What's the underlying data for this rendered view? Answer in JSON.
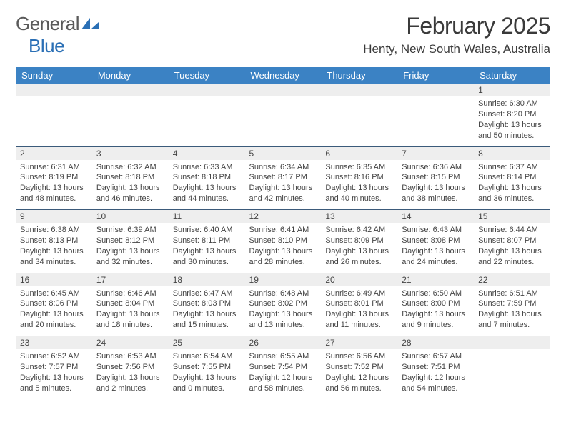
{
  "logo": {
    "text1": "General",
    "text2": "Blue"
  },
  "title": "February 2025",
  "location": "Henty, New South Wales, Australia",
  "colors": {
    "header_bg": "#3b82c4",
    "header_text": "#ffffff",
    "daynum_bg": "#eeeeee",
    "cell_border": "#3b5a7a",
    "body_text": "#444444",
    "logo_gray": "#5a5a5a",
    "logo_blue": "#2a6fb5"
  },
  "typography": {
    "title_fontsize": 32,
    "location_fontsize": 17,
    "header_fontsize": 13,
    "daynum_fontsize": 12,
    "data_fontsize": 11
  },
  "weekdays": [
    "Sunday",
    "Monday",
    "Tuesday",
    "Wednesday",
    "Thursday",
    "Friday",
    "Saturday"
  ],
  "weeks": [
    [
      null,
      null,
      null,
      null,
      null,
      null,
      {
        "n": "1",
        "sr": "Sunrise: 6:30 AM",
        "ss": "Sunset: 8:20 PM",
        "dl1": "Daylight: 13 hours",
        "dl2": "and 50 minutes."
      }
    ],
    [
      {
        "n": "2",
        "sr": "Sunrise: 6:31 AM",
        "ss": "Sunset: 8:19 PM",
        "dl1": "Daylight: 13 hours",
        "dl2": "and 48 minutes."
      },
      {
        "n": "3",
        "sr": "Sunrise: 6:32 AM",
        "ss": "Sunset: 8:18 PM",
        "dl1": "Daylight: 13 hours",
        "dl2": "and 46 minutes."
      },
      {
        "n": "4",
        "sr": "Sunrise: 6:33 AM",
        "ss": "Sunset: 8:18 PM",
        "dl1": "Daylight: 13 hours",
        "dl2": "and 44 minutes."
      },
      {
        "n": "5",
        "sr": "Sunrise: 6:34 AM",
        "ss": "Sunset: 8:17 PM",
        "dl1": "Daylight: 13 hours",
        "dl2": "and 42 minutes."
      },
      {
        "n": "6",
        "sr": "Sunrise: 6:35 AM",
        "ss": "Sunset: 8:16 PM",
        "dl1": "Daylight: 13 hours",
        "dl2": "and 40 minutes."
      },
      {
        "n": "7",
        "sr": "Sunrise: 6:36 AM",
        "ss": "Sunset: 8:15 PM",
        "dl1": "Daylight: 13 hours",
        "dl2": "and 38 minutes."
      },
      {
        "n": "8",
        "sr": "Sunrise: 6:37 AM",
        "ss": "Sunset: 8:14 PM",
        "dl1": "Daylight: 13 hours",
        "dl2": "and 36 minutes."
      }
    ],
    [
      {
        "n": "9",
        "sr": "Sunrise: 6:38 AM",
        "ss": "Sunset: 8:13 PM",
        "dl1": "Daylight: 13 hours",
        "dl2": "and 34 minutes."
      },
      {
        "n": "10",
        "sr": "Sunrise: 6:39 AM",
        "ss": "Sunset: 8:12 PM",
        "dl1": "Daylight: 13 hours",
        "dl2": "and 32 minutes."
      },
      {
        "n": "11",
        "sr": "Sunrise: 6:40 AM",
        "ss": "Sunset: 8:11 PM",
        "dl1": "Daylight: 13 hours",
        "dl2": "and 30 minutes."
      },
      {
        "n": "12",
        "sr": "Sunrise: 6:41 AM",
        "ss": "Sunset: 8:10 PM",
        "dl1": "Daylight: 13 hours",
        "dl2": "and 28 minutes."
      },
      {
        "n": "13",
        "sr": "Sunrise: 6:42 AM",
        "ss": "Sunset: 8:09 PM",
        "dl1": "Daylight: 13 hours",
        "dl2": "and 26 minutes."
      },
      {
        "n": "14",
        "sr": "Sunrise: 6:43 AM",
        "ss": "Sunset: 8:08 PM",
        "dl1": "Daylight: 13 hours",
        "dl2": "and 24 minutes."
      },
      {
        "n": "15",
        "sr": "Sunrise: 6:44 AM",
        "ss": "Sunset: 8:07 PM",
        "dl1": "Daylight: 13 hours",
        "dl2": "and 22 minutes."
      }
    ],
    [
      {
        "n": "16",
        "sr": "Sunrise: 6:45 AM",
        "ss": "Sunset: 8:06 PM",
        "dl1": "Daylight: 13 hours",
        "dl2": "and 20 minutes."
      },
      {
        "n": "17",
        "sr": "Sunrise: 6:46 AM",
        "ss": "Sunset: 8:04 PM",
        "dl1": "Daylight: 13 hours",
        "dl2": "and 18 minutes."
      },
      {
        "n": "18",
        "sr": "Sunrise: 6:47 AM",
        "ss": "Sunset: 8:03 PM",
        "dl1": "Daylight: 13 hours",
        "dl2": "and 15 minutes."
      },
      {
        "n": "19",
        "sr": "Sunrise: 6:48 AM",
        "ss": "Sunset: 8:02 PM",
        "dl1": "Daylight: 13 hours",
        "dl2": "and 13 minutes."
      },
      {
        "n": "20",
        "sr": "Sunrise: 6:49 AM",
        "ss": "Sunset: 8:01 PM",
        "dl1": "Daylight: 13 hours",
        "dl2": "and 11 minutes."
      },
      {
        "n": "21",
        "sr": "Sunrise: 6:50 AM",
        "ss": "Sunset: 8:00 PM",
        "dl1": "Daylight: 13 hours",
        "dl2": "and 9 minutes."
      },
      {
        "n": "22",
        "sr": "Sunrise: 6:51 AM",
        "ss": "Sunset: 7:59 PM",
        "dl1": "Daylight: 13 hours",
        "dl2": "and 7 minutes."
      }
    ],
    [
      {
        "n": "23",
        "sr": "Sunrise: 6:52 AM",
        "ss": "Sunset: 7:57 PM",
        "dl1": "Daylight: 13 hours",
        "dl2": "and 5 minutes."
      },
      {
        "n": "24",
        "sr": "Sunrise: 6:53 AM",
        "ss": "Sunset: 7:56 PM",
        "dl1": "Daylight: 13 hours",
        "dl2": "and 2 minutes."
      },
      {
        "n": "25",
        "sr": "Sunrise: 6:54 AM",
        "ss": "Sunset: 7:55 PM",
        "dl1": "Daylight: 13 hours",
        "dl2": "and 0 minutes."
      },
      {
        "n": "26",
        "sr": "Sunrise: 6:55 AM",
        "ss": "Sunset: 7:54 PM",
        "dl1": "Daylight: 12 hours",
        "dl2": "and 58 minutes."
      },
      {
        "n": "27",
        "sr": "Sunrise: 6:56 AM",
        "ss": "Sunset: 7:52 PM",
        "dl1": "Daylight: 12 hours",
        "dl2": "and 56 minutes."
      },
      {
        "n": "28",
        "sr": "Sunrise: 6:57 AM",
        "ss": "Sunset: 7:51 PM",
        "dl1": "Daylight: 12 hours",
        "dl2": "and 54 minutes."
      },
      null
    ]
  ]
}
